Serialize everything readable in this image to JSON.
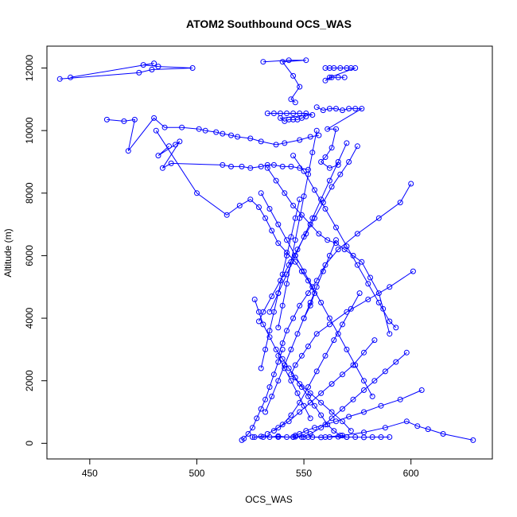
{
  "chart_data": {
    "type": "scatter",
    "title": "ATOM2 Southbound OCS_WAS",
    "xlabel": "OCS_WAS",
    "ylabel": "Altitude (m)",
    "xlim": [
      430,
      638
    ],
    "ylim": [
      -500,
      12700
    ],
    "xticks": [
      450,
      500,
      550,
      600
    ],
    "yticks": [
      0,
      2000,
      4000,
      6000,
      8000,
      10000,
      12000
    ],
    "grid": false,
    "legend": "none",
    "color": "#0000ff",
    "marker": "open-circle",
    "connected": true,
    "series": [
      {
        "x": [
          436,
          473,
          479,
          498,
          482,
          475,
          480,
          441
        ],
        "y": [
          11650,
          11850,
          11950,
          12000,
          12050,
          12100,
          12150,
          11700
        ]
      },
      {
        "x": [
          531,
          543,
          551,
          540,
          545,
          548,
          544,
          546
        ],
        "y": [
          12200,
          12250,
          12250,
          12200,
          11750,
          11400,
          11000,
          10900
        ]
      },
      {
        "x": [
          560,
          562,
          564,
          567,
          570,
          572,
          574,
          562,
          560,
          563,
          566,
          569
        ],
        "y": [
          12000,
          12000,
          12000,
          12000,
          12000,
          12000,
          12000,
          11700,
          11600,
          11700,
          11700,
          11700
        ]
      },
      {
        "x": [
          458,
          466,
          471,
          468,
          480,
          485,
          493,
          501,
          504,
          509,
          512,
          516,
          519,
          525,
          530,
          537,
          541,
          548,
          553,
          557
        ],
        "y": [
          10350,
          10300,
          10350,
          9350,
          10400,
          10100,
          10100,
          10050,
          10000,
          9950,
          9900,
          9850,
          9800,
          9750,
          9650,
          9550,
          9600,
          9700,
          9800,
          9850
        ]
      },
      {
        "x": [
          533,
          536,
          539,
          542,
          545,
          548,
          551,
          554,
          539,
          541,
          543,
          545,
          547,
          549,
          551
        ],
        "y": [
          10550,
          10550,
          10550,
          10550,
          10550,
          10550,
          10550,
          10500,
          10400,
          10300,
          10350,
          10350,
          10350,
          10400,
          10450
        ]
      },
      {
        "x": [
          487,
          482,
          490,
          492,
          484,
          488,
          512,
          516,
          521,
          525,
          530,
          533,
          536,
          540,
          544,
          548,
          552
        ],
        "y": [
          9500,
          9200,
          9550,
          9650,
          8800,
          8950,
          8900,
          8850,
          8850,
          8800,
          8850,
          8900,
          8900,
          8850,
          8850,
          8800,
          8750
        ]
      },
      {
        "x": [
          556,
          559,
          562,
          565,
          568,
          571,
          574,
          577,
          561,
          565,
          563,
          560,
          558,
          562,
          566
        ],
        "y": [
          10750,
          10650,
          10700,
          10700,
          10650,
          10700,
          10700,
          10700,
          10050,
          10050,
          9450,
          9150,
          9000,
          8800,
          8900
        ]
      },
      {
        "x": [
          481,
          500,
          514,
          520,
          525,
          529,
          532,
          535,
          538,
          542,
          546,
          549,
          552,
          555,
          553,
          550
        ],
        "y": [
          10000,
          8000,
          7300,
          7600,
          7800,
          7550,
          7200,
          6800,
          6400,
          6100,
          5800,
          5500,
          5200,
          4800,
          4400,
          4000
        ]
      },
      {
        "x": [
          533,
          537,
          541,
          545,
          549,
          553,
          557,
          561,
          565,
          569,
          573,
          577,
          581,
          585,
          587,
          590
        ],
        "y": [
          8800,
          8400,
          8000,
          7600,
          7300,
          7000,
          6700,
          6500,
          6400,
          6200,
          6000,
          5800,
          5300,
          4800,
          4300,
          3500
        ]
      },
      {
        "x": [
          600,
          595,
          585,
          575,
          566,
          560,
          556,
          552,
          548,
          545,
          542,
          540,
          538,
          541,
          544,
          547,
          550,
          553
        ],
        "y": [
          8300,
          7700,
          7200,
          6700,
          6200,
          5700,
          5200,
          4800,
          4400,
          4000,
          3600,
          3200,
          2800,
          2400,
          2000,
          1600,
          1200,
          800
        ]
      },
      {
        "x": [
          601,
          590,
          580,
          570,
          562,
          556,
          552,
          549,
          546,
          544,
          548,
          553,
          558,
          563,
          568,
          572
        ],
        "y": [
          5500,
          5000,
          4600,
          4200,
          3800,
          3500,
          3100,
          2800,
          2500,
          2200,
          1900,
          1600,
          1300,
          1000,
          700,
          400
        ]
      },
      {
        "x": [
          527,
          529,
          531,
          534,
          537,
          540,
          543,
          546,
          549,
          552,
          555,
          558,
          561,
          564,
          567,
          570
        ],
        "y": [
          4600,
          4200,
          3800,
          3400,
          3000,
          2700,
          2400,
          2100,
          1800,
          1500,
          1200,
          900,
          600,
          400,
          250,
          200
        ]
      },
      {
        "x": [
          540,
          538,
          536,
          534,
          532,
          530,
          528,
          526,
          524,
          522,
          521
        ],
        "y": [
          3000,
          2600,
          2200,
          1800,
          1400,
          1100,
          800,
          500,
          300,
          150,
          100
        ]
      },
      {
        "x": [
          598,
          593,
          588,
          583,
          578,
          573,
          568,
          563,
          558,
          553,
          549
        ],
        "y": [
          2900,
          2600,
          2300,
          2000,
          1700,
          1400,
          1100,
          800,
          500,
          300,
          200
        ]
      },
      {
        "x": [
          605,
          595,
          586,
          578,
          571,
          565,
          560,
          555,
          551,
          548,
          546,
          545
        ],
        "y": [
          1700,
          1400,
          1200,
          1000,
          850,
          700,
          600,
          500,
          400,
          300,
          250,
          200
        ]
      },
      {
        "x": [
          629,
          615,
          608,
          603,
          598,
          588,
          578,
          568,
          560,
          552,
          545,
          538,
          531,
          526
        ],
        "y": [
          100,
          300,
          450,
          550,
          700,
          500,
          350,
          250,
          200,
          200,
          200,
          200,
          200,
          200
        ]
      },
      {
        "x": [
          527,
          530,
          534,
          538,
          542,
          546,
          550,
          554,
          558,
          562,
          566,
          570,
          574,
          578,
          582,
          586,
          590
        ],
        "y": [
          200,
          220,
          200,
          230,
          200,
          210,
          200,
          200,
          190,
          200,
          210,
          200,
          200,
          190,
          200,
          200,
          200
        ]
      },
      {
        "x": [
          545,
          550,
          555,
          560,
          565,
          570,
          575,
          580,
          585,
          590,
          593
        ],
        "y": [
          9200,
          8700,
          8100,
          7500,
          6900,
          6300,
          5700,
          5100,
          4500,
          3900,
          3700
        ]
      },
      {
        "x": [
          575,
          571,
          567,
          563,
          559,
          555,
          551,
          547,
          543,
          539,
          535,
          531,
          529
        ],
        "y": [
          9500,
          9000,
          8600,
          8200,
          7700,
          7200,
          6700,
          6200,
          5700,
          5200,
          4700,
          4200,
          3900
        ]
      },
      {
        "x": [
          530,
          534,
          538,
          542,
          546,
          550,
          554,
          558,
          562,
          566,
          570,
          574,
          578,
          582
        ],
        "y": [
          8000,
          7500,
          7000,
          6500,
          6000,
          5500,
          5000,
          4500,
          4000,
          3500,
          3000,
          2500,
          2000,
          1500
        ]
      },
      {
        "x": [
          548,
          546,
          544,
          542,
          540,
          538,
          536,
          534,
          532,
          530
        ],
        "y": [
          7800,
          7200,
          6600,
          6000,
          5400,
          4800,
          4200,
          3600,
          3000,
          2400
        ]
      },
      {
        "x": [
          583,
          578,
          573,
          568,
          563,
          558,
          553,
          548,
          543,
          538,
          533
        ],
        "y": [
          3300,
          2900,
          2500,
          2200,
          1900,
          1600,
          1300,
          1000,
          700,
          500,
          300
        ]
      },
      {
        "x": [
          565,
          562,
          559,
          556,
          553,
          550,
          547,
          544,
          541,
          538,
          535,
          532
        ],
        "y": [
          6500,
          6000,
          5500,
          5000,
          4500,
          4000,
          3500,
          3000,
          2500,
          2000,
          1500,
          1000
        ]
      },
      {
        "x": [
          570,
          566,
          562,
          558,
          554,
          550,
          546,
          542,
          538,
          534
        ],
        "y": [
          9600,
          9000,
          8400,
          7800,
          7200,
          6600,
          6000,
          5400,
          4800,
          4200
        ]
      },
      {
        "x": [
          556,
          554,
          552,
          550,
          548,
          546,
          544,
          542,
          540,
          538
        ],
        "y": [
          10000,
          9300,
          8600,
          7900,
          7200,
          6500,
          5800,
          5100,
          4400,
          3700
        ]
      },
      {
        "x": [
          576,
          572,
          568,
          564,
          560,
          556,
          552,
          548,
          544,
          540,
          536
        ],
        "y": [
          4800,
          4300,
          3800,
          3300,
          2800,
          2300,
          1800,
          1300,
          900,
          600,
          400
        ]
      }
    ]
  }
}
